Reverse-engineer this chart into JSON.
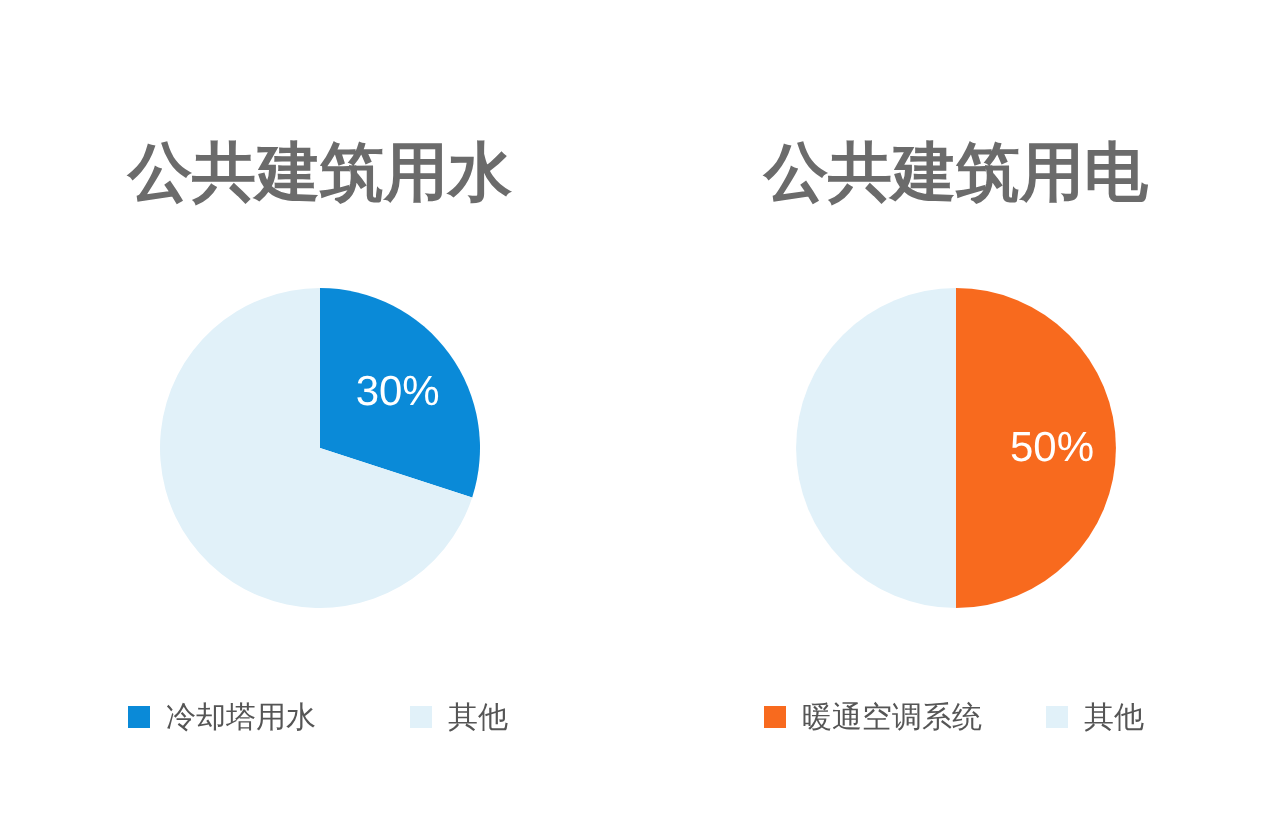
{
  "chart_data": [
    {
      "type": "pie",
      "title": "公共建筑用水",
      "categories": [
        "冷却塔用水",
        "其他"
      ],
      "values": [
        30,
        70
      ],
      "colors": [
        "#0a8ad8",
        "#e1f1f9"
      ],
      "value_labels": [
        "30%",
        null
      ],
      "legend": "bottom"
    },
    {
      "type": "pie",
      "title": "公共建筑用电",
      "categories": [
        "暖通空调系统",
        "其他"
      ],
      "values": [
        50,
        50
      ],
      "colors": [
        "#f86a1e",
        "#e1f1f9"
      ],
      "value_labels": [
        "50%",
        null
      ],
      "legend": "bottom"
    }
  ]
}
